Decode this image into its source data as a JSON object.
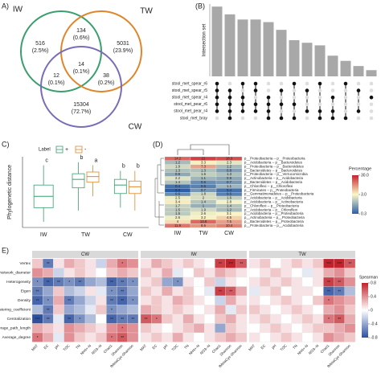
{
  "chart_data": [
    {
      "type": "venn",
      "panel": "A)",
      "sets": [
        {
          "name": "IW",
          "color": "#3a9e6e"
        },
        {
          "name": "TW",
          "color": "#e0862a"
        },
        {
          "name": "CW",
          "color": "#7a6db5"
        }
      ],
      "regions": [
        {
          "count": 516,
          "label": "(2.5%)"
        },
        {
          "count": 134,
          "label": "(0.6%)"
        },
        {
          "count": 5031,
          "label": "(23.9%)"
        },
        {
          "count": 12,
          "label": "(0.1%)"
        },
        {
          "count": 14,
          "label": "(0.1%)"
        },
        {
          "count": 38,
          "label": "(0.2%)"
        },
        {
          "count": 15304,
          "label": "(72.7%)"
        }
      ]
    },
    {
      "type": "upset",
      "panel": "(B)",
      "ylabel": "Intersection set",
      "color": "#a8a8a8",
      "ylim": [
        0,
        14
      ],
      "values": [
        13.5,
        12,
        11,
        11,
        10.5,
        9,
        7,
        6.5,
        6,
        4,
        3,
        2,
        1.2
      ],
      "sets": [
        {
          "name": "stool_met_spear_r6",
          "members": [
            1,
            0,
            1,
            1,
            0,
            0,
            1,
            0,
            1,
            0,
            1,
            0,
            0
          ]
        },
        {
          "name": "stool_met_spear_r5",
          "members": [
            1,
            1,
            0,
            1,
            0,
            1,
            0,
            1,
            0,
            0,
            0,
            1,
            0
          ]
        },
        {
          "name": "stool_met_spear_r4",
          "members": [
            1,
            1,
            1,
            0,
            1,
            0,
            0,
            0,
            0,
            1,
            0,
            0,
            1
          ]
        },
        {
          "name": "stool_met_pear_r6",
          "members": [
            1,
            1,
            1,
            1,
            1,
            1,
            1,
            0,
            0,
            0,
            0,
            0,
            0
          ]
        },
        {
          "name": "stool_met_pear_r4",
          "members": [
            1,
            1,
            1,
            1,
            1,
            0,
            0,
            1,
            1,
            1,
            0,
            1,
            0
          ]
        },
        {
          "name": "stool_met_bray",
          "members": [
            0,
            1,
            0,
            0,
            1,
            1,
            1,
            0,
            1,
            1,
            1,
            0,
            0
          ]
        }
      ]
    },
    {
      "type": "box",
      "panel": "C)",
      "ylabel": "Phylogenetic distance",
      "legend_title": "Label",
      "categories": [
        "IW",
        "TW",
        "CW"
      ],
      "ylim": [
        0,
        1.25
      ],
      "series": [
        {
          "name": "+",
          "color": "#3a9e6e",
          "values": [
            {
              "low": 0.1,
              "q1": 0.35,
              "median": 0.55,
              "q3": 0.75,
              "high": 1.1
            },
            {
              "low": 0.3,
              "q1": 0.7,
              "median": 0.85,
              "q3": 0.95,
              "high": 1.15
            },
            {
              "low": 0.35,
              "q1": 0.6,
              "median": 0.75,
              "q3": 0.85,
              "high": 1.0
            }
          ],
          "letters": [
            "c",
            "b",
            "b"
          ]
        },
        {
          "name": "-",
          "color": "#e0862a",
          "values": [
            null,
            {
              "low": 0.55,
              "q1": 0.8,
              "median": 0.9,
              "q3": 0.98,
              "high": 1.1
            },
            {
              "low": 0.3,
              "q1": 0.6,
              "median": 0.72,
              "q3": 0.82,
              "high": 1.0
            }
          ],
          "letters": [
            null,
            "a",
            "b"
          ]
        }
      ]
    },
    {
      "type": "heatmap",
      "panel": "(D)",
      "columns": [
        "IW",
        "TW",
        "CW"
      ],
      "rows": [
        "p__Proteobacteria -- p__Proteobacteria",
        "p__Acidobacteria -- p__Bacteroidetes",
        "p__Proteobacteria -- p__Bacteroidetes",
        "p__Bacteroidetes -- p__Bacteroidetes",
        "p__Proteobacteria -- p__Verrucomicrobia",
        "p__Actinobacteria -- p__Acidobacteria",
        "p__Bacteroidetes -- p__Acidobacteria",
        "p__Chloroflexi -- p__Chloroflexi",
        "p__Firmicutes -- p__Proteobacteria",
        "p__Gemmatimonadetes -- p__Proteobacteria",
        "p__Acidobacteria -- p__Acidobacteria",
        "p__Acidobacteria -- p__Actinobacteria",
        "p__Chloroflexi -- p__Proteobacteria",
        "p__Acidobacteria -- p__Chloroflexi",
        "p__Acidobacteria -- p__Proteobacteria",
        "p__Actinobacteria -- p__Proteobacteria",
        "p__Bacteroidetes -- p__Proteobacteria",
        "p__Proteobacteria -- p__Acidobacteria"
      ],
      "values": [
        [
          14.2,
          21.0,
          18.3
        ],
        [
          1.2,
          3.3,
          2.3
        ],
        [
          1.9,
          7.3,
          1.2
        ],
        [
          1.3,
          1.3,
          0.8
        ],
        [
          0.9,
          1.6,
          1.3
        ],
        [
          2.2,
          1.1,
          0.9
        ],
        [
          1.4,
          0.6,
          0.7
        ],
        [
          0.4,
          0.5,
          1.1
        ],
        [
          0.3,
          0.7,
          0.4
        ],
        [
          0.6,
          1.8,
          0.5
        ],
        [
          2.5,
          2.0,
          1.6
        ],
        [
          3.4,
          1.4,
          2.8
        ],
        [
          1.7,
          1.0,
          1.4
        ],
        [
          1.5,
          1.9,
          1.2
        ],
        [
          1.5,
          2.6,
          3.1
        ],
        [
          2.6,
          3.2,
          4.5
        ],
        [
          4.0,
          13.8,
          7.5
        ],
        [
          11.9,
          8.6,
          10.4
        ]
      ],
      "legend_title": "Percentage",
      "log": true,
      "clim": [
        0.3,
        30
      ],
      "cticks": [
        {
          "value": 30,
          "label": "30.0"
        },
        {
          "value": 3,
          "label": "3.0"
        },
        0.3
      ],
      "colors": [
        "#2b5fa8",
        "#fbf7c6",
        "#c8202e"
      ]
    },
    {
      "type": "correlation",
      "panel": "E)",
      "rows": [
        "Vertex",
        "Network_diameter",
        "Heterogeneity",
        "Eigen",
        "Density",
        "Clustering_coefficient",
        "Centralization",
        "Average_path_length",
        "Average_degree"
      ],
      "columns": [
        "MAT",
        "EC",
        "pH",
        "TOC",
        "TN",
        "NH4+-N",
        "NO3--N",
        "Chao1",
        "Shannon",
        "fMetaCyc-Shannon"
      ],
      "groups": [
        {
          "name": "CW",
          "values": [
            [
              0.2,
              -0.6,
              0.1,
              0.3,
              0.2,
              0.1,
              -0.2,
              0.3,
              0.5,
              0.4
            ],
            [
              0.4,
              0.3,
              -0.2,
              0.1,
              0.2,
              0.1,
              0.0,
              0.2,
              0.3,
              0.2
            ],
            [
              -0.5,
              -0.7,
              -0.6,
              -0.5,
              -0.6,
              -0.4,
              -0.3,
              -0.7,
              -0.6,
              -0.5
            ],
            [
              -0.6,
              -0.4,
              0.2,
              -0.3,
              -0.2,
              0.1,
              -0.1,
              -0.5,
              -0.6,
              -0.4
            ],
            [
              -0.7,
              -0.5,
              0.3,
              -0.6,
              -0.4,
              -0.2,
              0.1,
              -0.6,
              -0.7,
              -0.5
            ],
            [
              -0.3,
              -0.6,
              0.2,
              -0.4,
              -0.3,
              -0.1,
              0.2,
              -0.5,
              -0.4,
              -0.3
            ],
            [
              -0.8,
              -0.6,
              -0.1,
              -0.7,
              -0.5,
              -0.3,
              0.0,
              -0.7,
              -0.6,
              -0.6
            ],
            [
              0.3,
              0.2,
              0.1,
              0.4,
              0.3,
              0.2,
              0.1,
              0.4,
              0.5,
              0.4
            ],
            [
              0.5,
              0.3,
              -0.1,
              0.4,
              0.2,
              0.1,
              0.2,
              0.5,
              0.6,
              0.4
            ]
          ],
          "stars": [
            [
              null,
              "**",
              null,
              null,
              null,
              null,
              null,
              null,
              "*",
              null
            ],
            null,
            [
              "*",
              "**",
              "**",
              "*",
              "**",
              null,
              null,
              "**",
              "**",
              "*"
            ],
            [
              "**",
              null,
              null,
              null,
              null,
              null,
              null,
              "*",
              "**",
              null
            ],
            [
              "**",
              "*",
              null,
              "**",
              null,
              null,
              null,
              "**",
              "**",
              "*"
            ],
            [
              null,
              "**",
              null,
              null,
              null,
              null,
              null,
              "*",
              null,
              null
            ],
            [
              "***",
              "**",
              null,
              "**",
              "*",
              null,
              null,
              "**",
              "**",
              "**"
            ],
            [
              null,
              null,
              null,
              null,
              null,
              null,
              null,
              null,
              "*",
              null
            ],
            [
              "*",
              null,
              null,
              null,
              null,
              null,
              null,
              "*",
              "**",
              null
            ]
          ]
        },
        {
          "name": "IW",
          "values": [
            [
              0.1,
              0.3,
              0.2,
              0.1,
              0.2,
              0.1,
              0.0,
              0.7,
              0.8,
              0.6
            ],
            [
              0.2,
              0.1,
              0.3,
              -0.1,
              0.0,
              0.2,
              0.1,
              0.3,
              0.2,
              0.1
            ],
            [
              0.1,
              0.2,
              -0.4,
              -0.5,
              0.1,
              0.0,
              0.2,
              -0.2,
              0.1,
              0.0
            ],
            [
              0.2,
              0.1,
              0.3,
              0.1,
              0.2,
              0.0,
              -0.1,
              0.7,
              0.6,
              0.3
            ],
            [
              0.1,
              0.2,
              0.1,
              0.3,
              0.2,
              0.1,
              0.0,
              -0.2,
              0.3,
              0.1
            ],
            [
              0.3,
              0.2,
              0.1,
              0.2,
              0.1,
              0.0,
              0.1,
              0.3,
              -0.1,
              0.2
            ],
            [
              0.6,
              0.5,
              0.2,
              0.1,
              0.3,
              0.1,
              0.0,
              0.2,
              0.3,
              0.1
            ],
            [
              0.2,
              0.1,
              0.0,
              0.1,
              0.2,
              0.3,
              0.1,
              -0.4,
              0.2,
              0.1
            ],
            [
              0.1,
              0.2,
              0.1,
              0.3,
              0.1,
              0.0,
              0.1,
              0.2,
              0.3,
              0.2
            ]
          ],
          "stars": [
            [
              null,
              null,
              null,
              null,
              null,
              null,
              null,
              "**",
              "***",
              "**"
            ],
            null,
            [
              null,
              null,
              null,
              "*",
              null,
              null,
              null,
              null,
              null,
              null
            ],
            [
              null,
              null,
              null,
              null,
              null,
              null,
              null,
              "**",
              "**",
              null
            ],
            null,
            null,
            [
              "**",
              "*",
              null,
              null,
              null,
              null,
              null,
              null,
              null,
              null
            ],
            null,
            null
          ]
        },
        {
          "name": "TW",
          "values": [
            [
              0.1,
              0.2,
              0.0,
              0.1,
              0.2,
              0.1,
              0.2,
              0.8,
              0.8,
              0.6
            ],
            [
              0.0,
              0.1,
              0.2,
              0.1,
              0.0,
              -0.1,
              0.1,
              0.3,
              0.4,
              0.2
            ],
            [
              0.1,
              0.2,
              0.1,
              0.2,
              0.1,
              0.0,
              0.1,
              0.7,
              0.6,
              0.4
            ],
            [
              -0.1,
              0.1,
              0.2,
              0.0,
              0.1,
              0.1,
              0.0,
              -0.7,
              -0.6,
              -0.3
            ],
            [
              0.1,
              0.0,
              0.1,
              0.2,
              0.1,
              0.0,
              0.2,
              0.5,
              0.4,
              0.3
            ],
            [
              0.2,
              0.1,
              0.0,
              0.1,
              0.2,
              0.1,
              0.0,
              0.3,
              0.4,
              0.2
            ],
            [
              0.1,
              0.2,
              0.1,
              0.0,
              0.1,
              0.2,
              0.1,
              0.5,
              0.6,
              0.3
            ],
            [
              0.0,
              0.1,
              0.2,
              0.1,
              0.0,
              0.1,
              0.2,
              0.2,
              0.3,
              0.4
            ],
            [
              0.1,
              0.0,
              0.1,
              0.2,
              0.1,
              0.0,
              0.1,
              0.4,
              0.3,
              0.2
            ]
          ],
          "stars": [
            [
              null,
              null,
              null,
              null,
              null,
              null,
              null,
              "***",
              "***",
              "**"
            ],
            null,
            [
              null,
              null,
              null,
              null,
              null,
              null,
              null,
              "**",
              "**",
              null
            ],
            [
              null,
              null,
              null,
              null,
              null,
              null,
              null,
              "**",
              "**",
              null
            ],
            [
              null,
              null,
              null,
              null,
              null,
              null,
              null,
              "*",
              null,
              null
            ],
            null,
            [
              null,
              null,
              null,
              null,
              null,
              null,
              null,
              "*",
              "**",
              null
            ],
            null,
            null
          ]
        }
      ],
      "legend_title": "Spearman",
      "clim": [
        -0.8,
        0.8
      ],
      "cticks": [
        0.8,
        0.4,
        0,
        -0.4,
        -0.8
      ],
      "colors": [
        "#2c4f9e",
        "#ffffff",
        "#c2222b"
      ]
    }
  ]
}
